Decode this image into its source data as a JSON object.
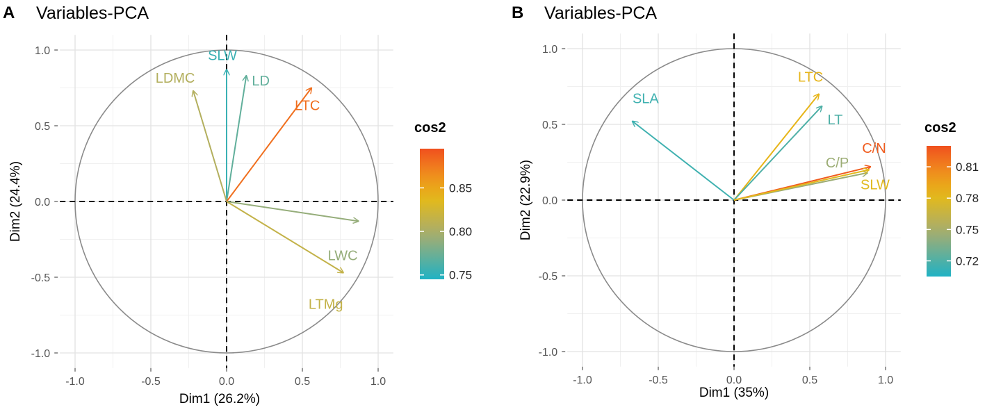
{
  "chart_data": [
    {
      "type": "scatter",
      "panel_letter": "A",
      "title": "Variables-PCA",
      "xlabel": "Dim1 (26.2%)",
      "ylabel": "Dim2 (24.4%)",
      "xlim": [
        -1.0,
        1.0
      ],
      "ylim": [
        -1.0,
        1.0
      ],
      "ticks": [
        "-1.0",
        "-0.5",
        "0.0",
        "0.5",
        "1.0"
      ],
      "tick_values": [
        -1.0,
        -0.5,
        0.0,
        0.5,
        1.0
      ],
      "grid": true,
      "legend": {
        "title": "cos2",
        "range": [
          0.745,
          0.895
        ],
        "ticks": [
          "0.85",
          "0.80",
          "0.75"
        ],
        "tick_values": [
          0.85,
          0.8,
          0.75
        ],
        "placement": "right"
      },
      "vectors": [
        {
          "name": "SLW",
          "x": 0.0,
          "y": 0.87,
          "cos2": 0.755
        },
        {
          "name": "LDMC",
          "x": -0.22,
          "y": 0.73,
          "cos2": 0.805
        },
        {
          "name": "LD",
          "x": 0.13,
          "y": 0.83,
          "cos2": 0.77
        },
        {
          "name": "LTC",
          "x": 0.56,
          "y": 0.75,
          "cos2": 0.88
        },
        {
          "name": "LWC",
          "x": 0.87,
          "y": -0.13,
          "cos2": 0.79
        },
        {
          "name": "LTMg",
          "x": 0.77,
          "y": -0.47,
          "cos2": 0.815
        }
      ]
    },
    {
      "type": "scatter",
      "panel_letter": "B",
      "title": "Variables-PCA",
      "xlabel": "Dim1 (35%)",
      "ylabel": "Dim2 (22.9%)",
      "xlim": [
        -1.0,
        1.0
      ],
      "ylim": [
        -1.0,
        1.0
      ],
      "ticks": [
        "-1.0",
        "-0.5",
        "0.0",
        "0.5",
        "1.0"
      ],
      "tick_values": [
        -1.0,
        -0.5,
        0.0,
        0.5,
        1.0
      ],
      "grid": true,
      "legend": {
        "title": "cos2",
        "range": [
          0.705,
          0.83
        ],
        "ticks": [
          "0.81",
          "0.78",
          "0.75",
          "0.72"
        ],
        "tick_values": [
          0.81,
          0.78,
          0.75,
          0.72
        ],
        "placement": "right"
      },
      "vectors": [
        {
          "name": "SLA",
          "x": -0.67,
          "y": 0.52,
          "cos2": 0.715
        },
        {
          "name": "LTC",
          "x": 0.56,
          "y": 0.7,
          "cos2": 0.785
        },
        {
          "name": "LT",
          "x": 0.58,
          "y": 0.62,
          "cos2": 0.72
        },
        {
          "name": "C/P",
          "x": 0.88,
          "y": 0.18,
          "cos2": 0.745
        },
        {
          "name": "C/N",
          "x": 0.9,
          "y": 0.22,
          "cos2": 0.825
        },
        {
          "name": "SLW",
          "x": 0.89,
          "y": 0.2,
          "cos2": 0.78
        }
      ]
    }
  ]
}
